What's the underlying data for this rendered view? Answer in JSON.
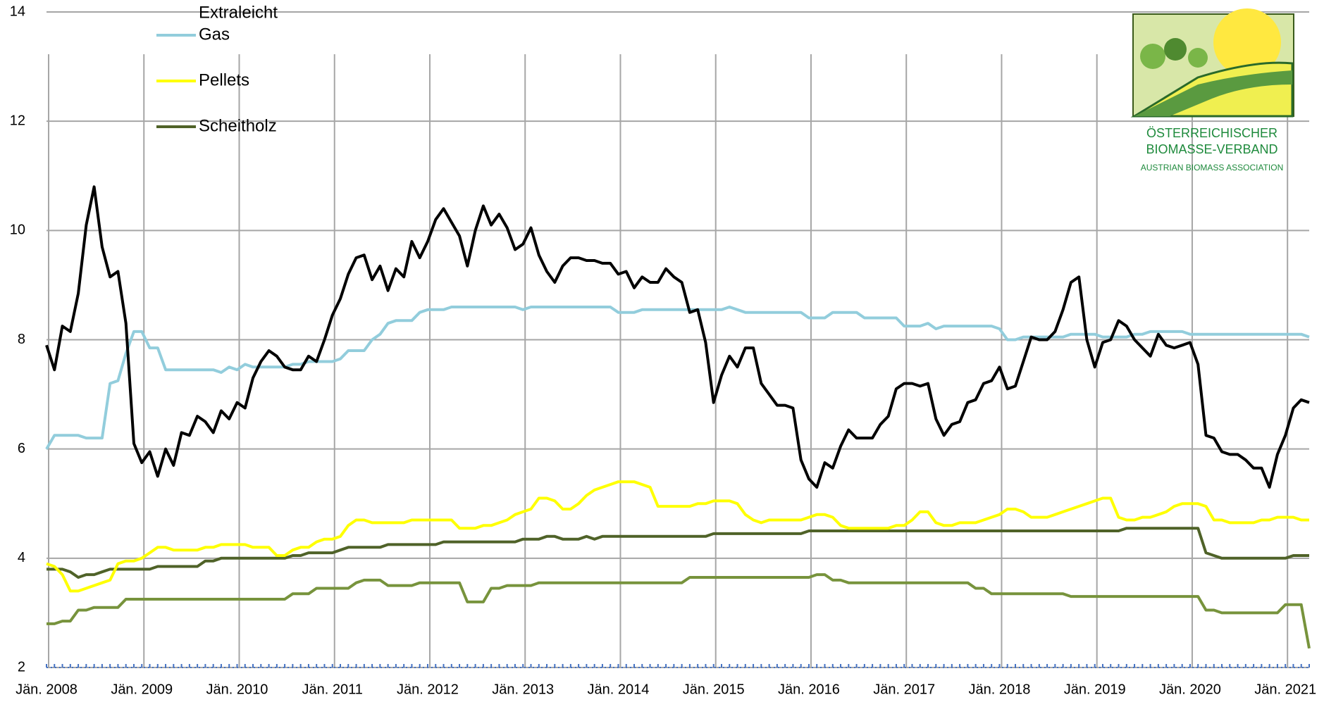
{
  "chart_data": {
    "type": "line",
    "categories": [
      "Jän. 2008",
      null,
      null,
      null,
      null,
      null,
      null,
      null,
      null,
      null,
      null,
      null,
      "Jän. 2009",
      null,
      null,
      null,
      null,
      null,
      null,
      null,
      null,
      null,
      null,
      null,
      "Jän. 2010",
      null,
      null,
      null,
      null,
      null,
      null,
      null,
      null,
      null,
      null,
      null,
      "Jän. 2011",
      null,
      null,
      null,
      null,
      null,
      null,
      null,
      null,
      null,
      null,
      null,
      "Jän. 2012",
      null,
      null,
      null,
      null,
      null,
      null,
      null,
      null,
      null,
      null,
      null,
      "Jän. 2013",
      null,
      null,
      null,
      null,
      null,
      null,
      null,
      null,
      null,
      null,
      null,
      "Jän. 2014",
      null,
      null,
      null,
      null,
      null,
      null,
      null,
      null,
      null,
      null,
      null,
      "Jän. 2015",
      null,
      null,
      null,
      null,
      null,
      null,
      null,
      null,
      null,
      null,
      null,
      "Jän. 2016",
      null,
      null,
      null,
      null,
      null,
      null,
      null,
      null,
      null,
      null,
      null,
      "Jän. 2017",
      null,
      null,
      null,
      null,
      null,
      null,
      null,
      null,
      null,
      null,
      null,
      "Jän. 2018",
      null,
      null,
      null,
      null,
      null,
      null,
      null,
      null,
      null,
      null,
      null,
      "Jän. 2019",
      null,
      null,
      null,
      null,
      null,
      null,
      null,
      null,
      null,
      null,
      null,
      "Jän. 2020",
      null,
      null,
      null,
      null,
      null,
      null,
      null,
      null,
      null,
      null,
      null,
      "Jän. 2021",
      null,
      null,
      null
    ],
    "series": [
      {
        "name": "Extraleicht",
        "color": "#000000",
        "values": [
          7.9,
          7.45,
          8.25,
          8.15,
          8.85,
          10.1,
          10.8,
          9.7,
          9.15,
          9.25,
          8.3,
          6.1,
          5.75,
          5.95,
          5.5,
          6.0,
          5.7,
          6.3,
          6.25,
          6.6,
          6.5,
          6.3,
          6.7,
          6.55,
          6.85,
          6.75,
          7.3,
          7.6,
          7.8,
          7.7,
          7.5,
          7.45,
          7.45,
          7.7,
          7.6,
          8.0,
          8.45,
          8.75,
          9.2,
          9.5,
          9.55,
          9.1,
          9.35,
          8.9,
          9.3,
          9.15,
          9.8,
          9.5,
          9.8,
          10.2,
          10.4,
          10.15,
          9.9,
          9.35,
          10.0,
          10.45,
          10.1,
          10.3,
          10.05,
          9.65,
          9.75,
          10.05,
          9.55,
          9.25,
          9.05,
          9.35,
          9.5,
          9.5,
          9.45,
          9.45,
          9.4,
          9.4,
          9.2,
          9.25,
          8.95,
          9.15,
          9.05,
          9.05,
          9.3,
          9.15,
          9.05,
          8.5,
          8.55,
          7.95,
          6.85,
          7.35,
          7.7,
          7.5,
          7.85,
          7.85,
          7.2,
          7.0,
          6.8,
          6.8,
          6.75,
          5.8,
          5.45,
          5.3,
          5.75,
          5.65,
          6.05,
          6.35,
          6.2,
          6.2,
          6.2,
          6.45,
          6.6,
          7.1,
          7.2,
          7.2,
          7.15,
          7.2,
          6.55,
          6.25,
          6.45,
          6.5,
          6.85,
          6.9,
          7.2,
          7.25,
          7.5,
          7.1,
          7.15,
          7.6,
          8.05,
          8.0,
          8.0,
          8.15,
          8.55,
          9.05,
          9.15,
          8.0,
          7.5,
          7.95,
          8.0,
          8.35,
          8.25,
          8.0,
          7.85,
          7.7,
          8.1,
          7.9,
          7.85,
          7.9,
          7.95,
          7.55,
          6.25,
          6.2,
          5.95,
          5.9,
          5.9,
          5.8,
          5.65,
          5.65,
          5.3,
          5.9,
          6.25,
          6.75,
          6.9,
          6.85
        ]
      },
      {
        "name": "Gas",
        "color": "#92cddc",
        "values": [
          6.0,
          6.25,
          6.25,
          6.25,
          6.25,
          6.2,
          6.2,
          6.2,
          7.2,
          7.25,
          7.75,
          8.15,
          8.15,
          7.85,
          7.85,
          7.45,
          7.45,
          7.45,
          7.45,
          7.45,
          7.45,
          7.45,
          7.4,
          7.5,
          7.45,
          7.55,
          7.5,
          7.5,
          7.5,
          7.5,
          7.5,
          7.55,
          7.55,
          7.6,
          7.6,
          7.6,
          7.6,
          7.65,
          7.8,
          7.8,
          7.8,
          8.0,
          8.1,
          8.3,
          8.35,
          8.35,
          8.35,
          8.5,
          8.55,
          8.55,
          8.55,
          8.6,
          8.6,
          8.6,
          8.6,
          8.6,
          8.6,
          8.6,
          8.6,
          8.6,
          8.55,
          8.6,
          8.6,
          8.6,
          8.6,
          8.6,
          8.6,
          8.6,
          8.6,
          8.6,
          8.6,
          8.6,
          8.5,
          8.5,
          8.5,
          8.55,
          8.55,
          8.55,
          8.55,
          8.55,
          8.55,
          8.55,
          8.55,
          8.55,
          8.55,
          8.55,
          8.6,
          8.55,
          8.5,
          8.5,
          8.5,
          8.5,
          8.5,
          8.5,
          8.5,
          8.5,
          8.4,
          8.4,
          8.4,
          8.5,
          8.5,
          8.5,
          8.5,
          8.4,
          8.4,
          8.4,
          8.4,
          8.4,
          8.25,
          8.25,
          8.25,
          8.3,
          8.2,
          8.25,
          8.25,
          8.25,
          8.25,
          8.25,
          8.25,
          8.25,
          8.2,
          8.0,
          8.0,
          8.05,
          8.05,
          8.05,
          8.05,
          8.05,
          8.05,
          8.1,
          8.1,
          8.1,
          8.1,
          8.05,
          8.05,
          8.05,
          8.05,
          8.1,
          8.1,
          8.15,
          8.15,
          8.15,
          8.15,
          8.15,
          8.1,
          8.1,
          8.1,
          8.1,
          8.1,
          8.1,
          8.1,
          8.1,
          8.1,
          8.1,
          8.1,
          8.1,
          8.1,
          8.1,
          8.1,
          8.05
        ]
      },
      {
        "name": "Pellets",
        "color": "#ffff00",
        "values": [
          3.9,
          3.85,
          3.7,
          3.4,
          3.4,
          3.45,
          3.5,
          3.55,
          3.6,
          3.9,
          3.95,
          3.95,
          4.0,
          4.1,
          4.2,
          4.2,
          4.15,
          4.15,
          4.15,
          4.15,
          4.2,
          4.2,
          4.25,
          4.25,
          4.25,
          4.25,
          4.2,
          4.2,
          4.2,
          4.05,
          4.05,
          4.15,
          4.2,
          4.2,
          4.3,
          4.35,
          4.35,
          4.4,
          4.6,
          4.7,
          4.7,
          4.65,
          4.65,
          4.65,
          4.65,
          4.65,
          4.7,
          4.7,
          4.7,
          4.7,
          4.7,
          4.7,
          4.55,
          4.55,
          4.55,
          4.6,
          4.6,
          4.65,
          4.7,
          4.8,
          4.85,
          4.9,
          5.1,
          5.1,
          5.05,
          4.9,
          4.9,
          5.0,
          5.15,
          5.25,
          5.3,
          5.35,
          5.4,
          5.4,
          5.4,
          5.35,
          5.3,
          4.95,
          4.95,
          4.95,
          4.95,
          4.95,
          5.0,
          5.0,
          5.05,
          5.05,
          5.05,
          5.0,
          4.8,
          4.7,
          4.65,
          4.7,
          4.7,
          4.7,
          4.7,
          4.7,
          4.75,
          4.8,
          4.8,
          4.75,
          4.6,
          4.55,
          4.55,
          4.55,
          4.55,
          4.55,
          4.55,
          4.6,
          4.6,
          4.7,
          4.85,
          4.85,
          4.65,
          4.6,
          4.6,
          4.65,
          4.65,
          4.65,
          4.7,
          4.75,
          4.8,
          4.9,
          4.9,
          4.85,
          4.75,
          4.75,
          4.75,
          4.8,
          4.85,
          4.9,
          4.95,
          5.0,
          5.05,
          5.1,
          5.1,
          4.75,
          4.7,
          4.7,
          4.75,
          4.75,
          4.8,
          4.85,
          4.95,
          5.0,
          5.0,
          5.0,
          4.95,
          4.7,
          4.7,
          4.65,
          4.65,
          4.65,
          4.65,
          4.7,
          4.7,
          4.75,
          4.75,
          4.75,
          4.7,
          4.7
        ]
      },
      {
        "name": "Scheitholz",
        "color": "#4f6228",
        "values": [
          3.8,
          3.8,
          3.8,
          3.75,
          3.65,
          3.7,
          3.7,
          3.75,
          3.8,
          3.8,
          3.8,
          3.8,
          3.8,
          3.8,
          3.85,
          3.85,
          3.85,
          3.85,
          3.85,
          3.85,
          3.95,
          3.95,
          4.0,
          4.0,
          4.0,
          4.0,
          4.0,
          4.0,
          4.0,
          4.0,
          4.0,
          4.05,
          4.05,
          4.1,
          4.1,
          4.1,
          4.1,
          4.15,
          4.2,
          4.2,
          4.2,
          4.2,
          4.2,
          4.25,
          4.25,
          4.25,
          4.25,
          4.25,
          4.25,
          4.25,
          4.3,
          4.3,
          4.3,
          4.3,
          4.3,
          4.3,
          4.3,
          4.3,
          4.3,
          4.3,
          4.35,
          4.35,
          4.35,
          4.4,
          4.4,
          4.35,
          4.35,
          4.35,
          4.4,
          4.35,
          4.4,
          4.4,
          4.4,
          4.4,
          4.4,
          4.4,
          4.4,
          4.4,
          4.4,
          4.4,
          4.4,
          4.4,
          4.4,
          4.4,
          4.45,
          4.45,
          4.45,
          4.45,
          4.45,
          4.45,
          4.45,
          4.45,
          4.45,
          4.45,
          4.45,
          4.45,
          4.5,
          4.5,
          4.5,
          4.5,
          4.5,
          4.5,
          4.5,
          4.5,
          4.5,
          4.5,
          4.5,
          4.5,
          4.5,
          4.5,
          4.5,
          4.5,
          4.5,
          4.5,
          4.5,
          4.5,
          4.5,
          4.5,
          4.5,
          4.5,
          4.5,
          4.5,
          4.5,
          4.5,
          4.5,
          4.5,
          4.5,
          4.5,
          4.5,
          4.5,
          4.5,
          4.5,
          4.5,
          4.5,
          4.5,
          4.5,
          4.55,
          4.55,
          4.55,
          4.55,
          4.55,
          4.55,
          4.55,
          4.55,
          4.55,
          4.55,
          4.1,
          4.05,
          4.0,
          4.0,
          4.0,
          4.0,
          4.0,
          4.0,
          4.0,
          4.0,
          4.0,
          4.05,
          4.05,
          4.05
        ]
      },
      {
        "color": "#77933c",
        "values": [
          2.8,
          2.8,
          2.85,
          2.85,
          3.05,
          3.05,
          3.1,
          3.1,
          3.1,
          3.1,
          3.25,
          3.25,
          3.25,
          3.25,
          3.25,
          3.25,
          3.25,
          3.25,
          3.25,
          3.25,
          3.25,
          3.25,
          3.25,
          3.25,
          3.25,
          3.25,
          3.25,
          3.25,
          3.25,
          3.25,
          3.25,
          3.35,
          3.35,
          3.35,
          3.45,
          3.45,
          3.45,
          3.45,
          3.45,
          3.55,
          3.6,
          3.6,
          3.6,
          3.5,
          3.5,
          3.5,
          3.5,
          3.55,
          3.55,
          3.55,
          3.55,
          3.55,
          3.55,
          3.2,
          3.2,
          3.2,
          3.45,
          3.45,
          3.5,
          3.5,
          3.5,
          3.5,
          3.55,
          3.55,
          3.55,
          3.55,
          3.55,
          3.55,
          3.55,
          3.55,
          3.55,
          3.55,
          3.55,
          3.55,
          3.55,
          3.55,
          3.55,
          3.55,
          3.55,
          3.55,
          3.55,
          3.65,
          3.65,
          3.65,
          3.65,
          3.65,
          3.65,
          3.65,
          3.65,
          3.65,
          3.65,
          3.65,
          3.65,
          3.65,
          3.65,
          3.65,
          3.65,
          3.7,
          3.7,
          3.6,
          3.6,
          3.55,
          3.55,
          3.55,
          3.55,
          3.55,
          3.55,
          3.55,
          3.55,
          3.55,
          3.55,
          3.55,
          3.55,
          3.55,
          3.55,
          3.55,
          3.55,
          3.45,
          3.45,
          3.35,
          3.35,
          3.35,
          3.35,
          3.35,
          3.35,
          3.35,
          3.35,
          3.35,
          3.35,
          3.3,
          3.3,
          3.3,
          3.3,
          3.3,
          3.3,
          3.3,
          3.3,
          3.3,
          3.3,
          3.3,
          3.3,
          3.3,
          3.3,
          3.3,
          3.3,
          3.3,
          3.05,
          3.05,
          3.0,
          3.0,
          3.0,
          3.0,
          3.0,
          3.0,
          3.0,
          3.0,
          3.15,
          3.15,
          3.15,
          2.35
        ]
      }
    ],
    "ylim": [
      2,
      14
    ],
    "yticks": [
      2,
      4,
      6,
      8,
      10,
      12,
      14
    ],
    "grid": true
  },
  "logo": {
    "line1": "ÖSTERREICHISCHER",
    "line2": "BIOMASSE-VERBAND",
    "line3": "AUSTRIAN BIOMASS ASSOCIATION"
  }
}
